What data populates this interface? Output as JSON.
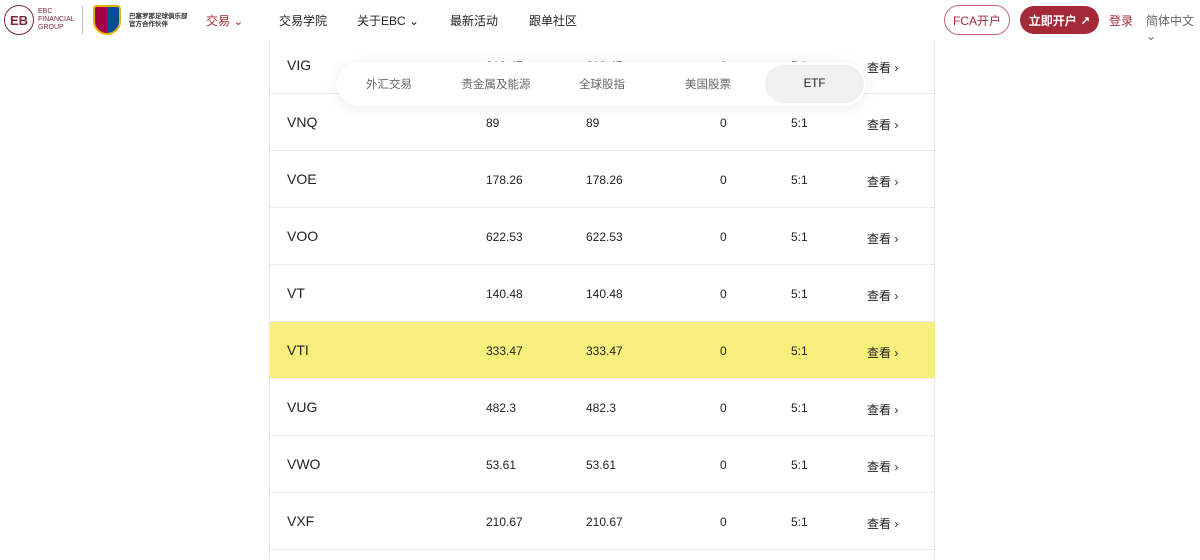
{
  "header": {
    "logo_mark": "EB",
    "logo_text": [
      "EBC",
      "FINANCIAL",
      "GROUP"
    ],
    "partner": [
      "巴塞罗那足球俱乐部",
      "官方合作伙伴"
    ],
    "nav": [
      {
        "label": "交易 ⌄",
        "active": true
      },
      {
        "label": "交易学院"
      },
      {
        "label": "关于EBC ⌄"
      },
      {
        "label": "最新活动"
      },
      {
        "label": "跟单社区"
      }
    ],
    "fca": "FCA开户",
    "open": "立即开户 ↗",
    "login": "登录",
    "lang": "简体中文 ⌄"
  },
  "tabs": [
    "外汇交易",
    "贵金属及能源",
    "全球股指",
    "美国股票",
    "ETF"
  ],
  "active_tab": "ETF",
  "view_label": "查看 ›",
  "highlight_color": "#f6ef7c",
  "rows": [
    {
      "sym": "VIG",
      "a": "210.47",
      "b": "210.47",
      "c": "0",
      "d": "5:1"
    },
    {
      "sym": "VNQ",
      "a": "89",
      "b": "89",
      "c": "0",
      "d": "5:1"
    },
    {
      "sym": "VOE",
      "a": "178.26",
      "b": "178.26",
      "c": "0",
      "d": "5:1"
    },
    {
      "sym": "VOO",
      "a": "622.53",
      "b": "622.53",
      "c": "0",
      "d": "5:1"
    },
    {
      "sym": "VT",
      "a": "140.48",
      "b": "140.48",
      "c": "0",
      "d": "5:1"
    },
    {
      "sym": "VTI",
      "a": "333.47",
      "b": "333.47",
      "c": "0",
      "d": "5:1",
      "highlighted": true
    },
    {
      "sym": "VUG",
      "a": "482.3",
      "b": "482.3",
      "c": "0",
      "d": "5:1"
    },
    {
      "sym": "VWO",
      "a": "53.61",
      "b": "53.61",
      "c": "0",
      "d": "5:1"
    },
    {
      "sym": "VXF",
      "a": "210.67",
      "b": "210.67",
      "c": "0",
      "d": "5:1"
    }
  ]
}
